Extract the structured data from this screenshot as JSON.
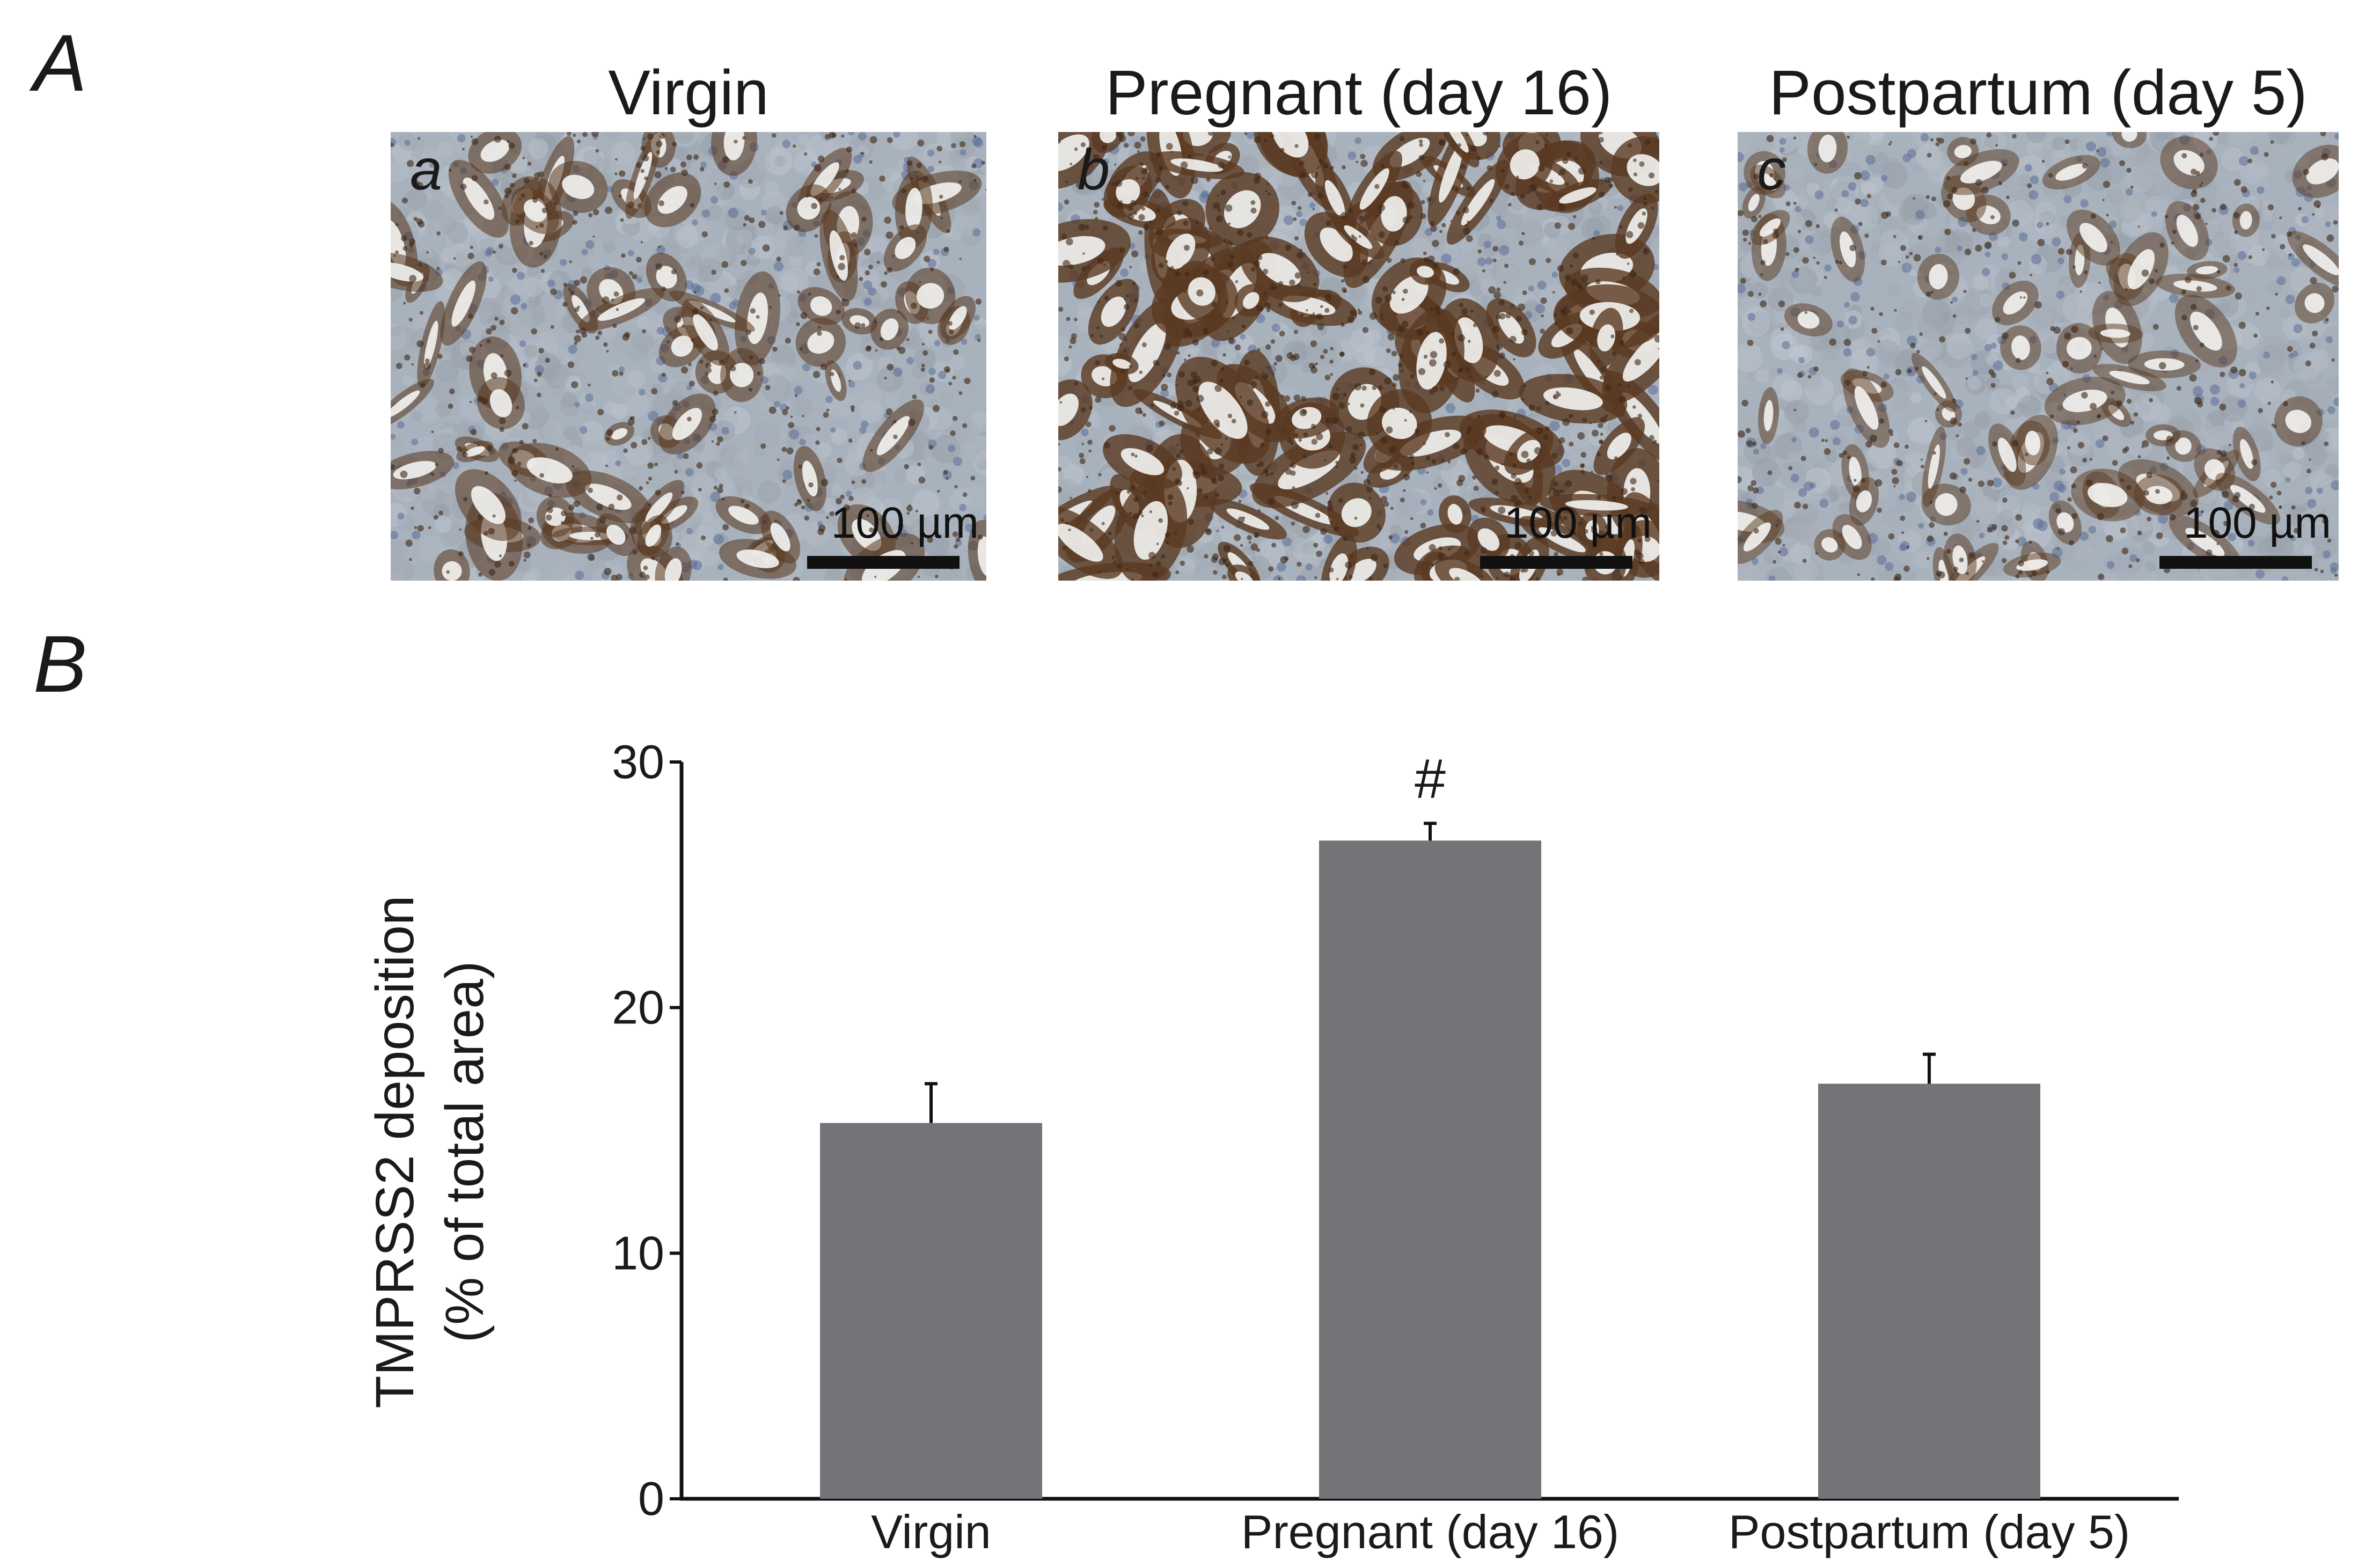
{
  "panel_a": {
    "letter": "A",
    "images": [
      {
        "title": "Virgin",
        "sublabel": "a",
        "scale_label": "100 µm",
        "stain_level": 0.5
      },
      {
        "title": "Pregnant (day 16)",
        "sublabel": "b",
        "scale_label": "100 µm",
        "stain_level": 1.0
      },
      {
        "title": "Postpartum (day 5)",
        "sublabel": "c",
        "scale_label": "100 µm",
        "stain_level": 0.35
      }
    ]
  },
  "panel_b": {
    "letter": "B"
  },
  "chart_data": {
    "type": "bar",
    "categories": [
      "Virgin",
      "Pregnant (day 16)",
      "Postpartum (day 5)"
    ],
    "values": [
      15.3,
      26.8,
      16.9
    ],
    "errors": [
      1.6,
      0.7,
      1.2
    ],
    "annotations": [
      "",
      "#",
      ""
    ],
    "title": "",
    "xlabel": "",
    "ylabel_lines": [
      "TMPRSS2 deposition",
      "(% of total area)"
    ],
    "ylim": [
      0,
      30
    ],
    "yticks": [
      0,
      10,
      20,
      30
    ],
    "grid": false,
    "legend": "none",
    "bar_color": "#737478"
  }
}
